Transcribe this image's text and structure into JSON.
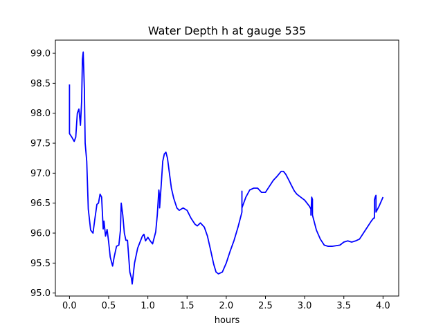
{
  "chart_data": {
    "type": "line",
    "title": "Water Depth h at gauge 535",
    "xlabel": "hours",
    "ylabel": "",
    "xlim": [
      -0.18,
      4.2
    ],
    "ylim": [
      94.95,
      99.22
    ],
    "xticks": [
      0.0,
      0.5,
      1.0,
      1.5,
      2.0,
      2.5,
      3.0,
      3.5,
      4.0
    ],
    "xtick_labels": [
      "0.0",
      "0.5",
      "1.0",
      "1.5",
      "2.0",
      "2.5",
      "3.0",
      "3.5",
      "4.0"
    ],
    "yticks": [
      95.0,
      95.5,
      96.0,
      96.5,
      97.0,
      97.5,
      98.0,
      98.5,
      99.0
    ],
    "ytick_labels": [
      "95.0",
      "95.5",
      "96.0",
      "96.5",
      "97.0",
      "97.5",
      "98.0",
      "98.5",
      "99.0"
    ],
    "grid": false,
    "legend": "none",
    "series": [
      {
        "color": "#0000ff",
        "x": [
          0.0,
          0.0,
          0.0,
          0.0,
          0.03,
          0.06,
          0.08,
          0.1,
          0.12,
          0.14,
          0.155,
          0.165,
          0.175,
          0.19,
          0.2,
          0.22,
          0.24,
          0.27,
          0.3,
          0.32,
          0.35,
          0.37,
          0.39,
          0.41,
          0.43,
          0.44,
          0.46,
          0.48,
          0.5,
          0.52,
          0.55,
          0.57,
          0.6,
          0.63,
          0.65,
          0.66,
          0.68,
          0.7,
          0.72,
          0.74,
          0.77,
          0.79,
          0.8,
          0.83,
          0.87,
          0.9,
          0.93,
          0.95,
          0.97,
          1.0,
          1.03,
          1.06,
          1.1,
          1.12,
          1.14,
          1.15,
          1.15,
          1.17,
          1.19,
          1.21,
          1.23,
          1.25,
          1.28,
          1.3,
          1.33,
          1.37,
          1.4,
          1.45,
          1.5,
          1.55,
          1.6,
          1.63,
          1.67,
          1.72,
          1.76,
          1.8,
          1.84,
          1.87,
          1.9,
          1.95,
          2.0,
          2.05,
          2.1,
          2.15,
          2.2,
          2.2,
          2.2,
          2.25,
          2.3,
          2.35,
          2.4,
          2.45,
          2.5,
          2.55,
          2.6,
          2.65,
          2.7,
          2.73,
          2.76,
          2.8,
          2.83,
          2.87,
          2.9,
          2.95,
          3.0,
          3.03,
          3.06,
          3.08,
          3.08,
          3.09,
          3.1,
          3.1,
          3.15,
          3.2,
          3.25,
          3.3,
          3.35,
          3.4,
          3.45,
          3.5,
          3.55,
          3.6,
          3.65,
          3.7,
          3.75,
          3.8,
          3.85,
          3.88,
          3.89,
          3.89,
          3.9,
          3.91,
          3.91,
          3.95,
          4.0
        ],
        "y": [
          98.48,
          98.0,
          97.68,
          97.66,
          97.6,
          97.53,
          97.6,
          98.0,
          98.07,
          97.8,
          98.2,
          98.9,
          99.02,
          98.4,
          97.5,
          97.2,
          96.4,
          96.05,
          96.0,
          96.2,
          96.48,
          96.5,
          96.65,
          96.6,
          96.07,
          96.2,
          95.95,
          96.06,
          95.85,
          95.6,
          95.45,
          95.6,
          95.78,
          95.8,
          96.05,
          96.5,
          96.3,
          96.0,
          95.88,
          95.88,
          95.35,
          95.25,
          95.15,
          95.5,
          95.75,
          95.85,
          95.95,
          95.98,
          95.87,
          95.93,
          95.87,
          95.82,
          96.02,
          96.3,
          96.72,
          96.6,
          96.42,
          96.8,
          97.2,
          97.32,
          97.35,
          97.25,
          96.95,
          96.75,
          96.58,
          96.42,
          96.38,
          96.42,
          96.38,
          96.25,
          96.15,
          96.12,
          96.17,
          96.1,
          95.95,
          95.72,
          95.48,
          95.35,
          95.32,
          95.35,
          95.5,
          95.7,
          95.88,
          96.1,
          96.35,
          96.7,
          96.42,
          96.6,
          96.72,
          96.75,
          96.75,
          96.68,
          96.68,
          96.78,
          96.88,
          96.95,
          97.03,
          97.03,
          96.98,
          96.88,
          96.8,
          96.7,
          96.65,
          96.6,
          96.55,
          96.5,
          96.45,
          96.4,
          96.3,
          96.6,
          96.56,
          96.3,
          96.05,
          95.9,
          95.8,
          95.78,
          95.78,
          95.79,
          95.8,
          95.85,
          95.87,
          95.85,
          95.87,
          95.9,
          96.0,
          96.1,
          96.2,
          96.25,
          96.25,
          96.55,
          96.6,
          96.63,
          96.35,
          96.45,
          96.6
        ]
      }
    ]
  }
}
